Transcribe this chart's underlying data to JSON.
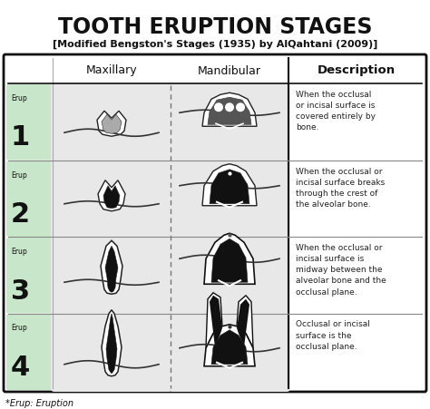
{
  "title": "TOOTH ERUPTION STAGES",
  "subtitle": "[Modified Bengston's Stages (1935) by AlQahtani (2009)]",
  "col_headers": [
    "Maxillary",
    "Mandibular",
    "Description"
  ],
  "stages": [
    "1",
    "2",
    "3",
    "4"
  ],
  "descriptions": [
    "When the occlusal\nor incisal surface is\ncovered entirely by\nbone.",
    "When the occlusal or\nincisal surface breaks\nthrough the crest of\nthe alveolar bone.",
    "When the occlusal or\nincisal surface is\nmidway between the\nalveolar bone and the\nocclusal plane.",
    "Occlusal or incisal\nsurface is the\nocclusal plane."
  ],
  "footnote": "*Erup: Eruption",
  "bg_color": "#ffffff",
  "stage_bg_color": "#c8e6c9",
  "cell_bg_color": "#ebebeb",
  "border_color": "#111111",
  "text_color": "#111111",
  "desc_color": "#222222"
}
